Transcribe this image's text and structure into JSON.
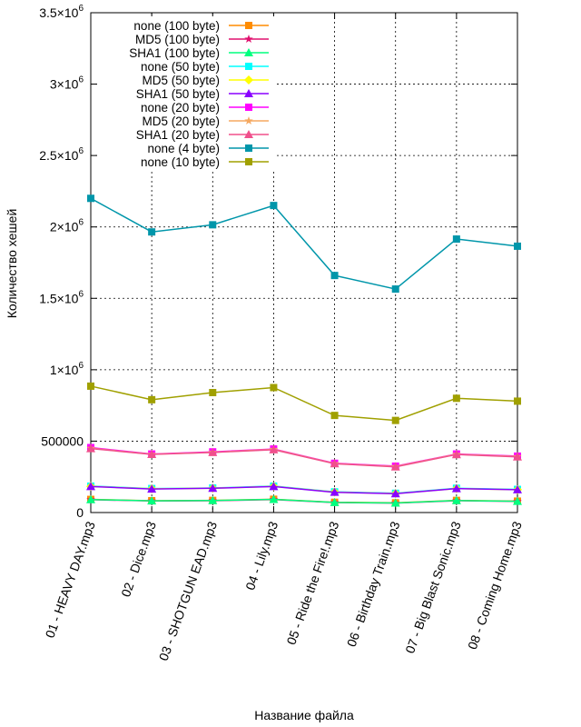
{
  "chart_data": {
    "type": "line",
    "title": "",
    "xlabel": "Название файла",
    "ylabel": "Количество хешей",
    "ylim": [
      0,
      3500000
    ],
    "yticks": [
      {
        "value": 0,
        "label": "0",
        "sup": ""
      },
      {
        "value": 500000,
        "label": "500000",
        "sup": ""
      },
      {
        "value": 1000000,
        "label": "1×10",
        "sup": "6"
      },
      {
        "value": 1500000,
        "label": "1.5×10",
        "sup": "6"
      },
      {
        "value": 2000000,
        "label": "2×10",
        "sup": "6"
      },
      {
        "value": 2500000,
        "label": "2.5×10",
        "sup": "6"
      },
      {
        "value": 3000000,
        "label": "3×10",
        "sup": "6"
      },
      {
        "value": 3500000,
        "label": "3.5×10",
        "sup": "6"
      }
    ],
    "grid": true,
    "grid_style": "dotted",
    "legend_position": "top-left",
    "categories": [
      "01 - HEAVY DAY.mp3",
      "02 - Dice.mp3",
      "03 - SHOTGUN EAD.mp3",
      "04 - Lily.mp3",
      "05 - Ride the Fire!.mp3",
      "06 - Birthday Train.mp3",
      "07 - Big Blast Sonic.mp3",
      "08 - Coming Home.mp3"
    ],
    "series": [
      {
        "name": "none (100 byte)",
        "color": "#ff8c00",
        "marker": "square",
        "values": [
          92000,
          83000,
          85000,
          93000,
          72000,
          68000,
          85000,
          80000
        ]
      },
      {
        "name": "MD5 (100 byte)",
        "color": "#e0106e",
        "marker": "star",
        "values": [
          90000,
          81000,
          83000,
          91000,
          70000,
          66000,
          83000,
          78000
        ]
      },
      {
        "name": "SHA1 (100 byte)",
        "color": "#00ff7f",
        "marker": "triangle",
        "values": [
          91000,
          82000,
          84000,
          92000,
          71000,
          67000,
          84000,
          79000
        ]
      },
      {
        "name": "none (50 byte)",
        "color": "#00ffff",
        "marker": "square",
        "values": [
          185000,
          168000,
          172000,
          185000,
          145000,
          135000,
          170000,
          162000
        ]
      },
      {
        "name": "MD5 (50 byte)",
        "color": "#ffff00",
        "marker": "diamond",
        "values": [
          183000,
          166000,
          170000,
          183000,
          143000,
          133000,
          168000,
          160000
        ]
      },
      {
        "name": "SHA1 (50 byte)",
        "color": "#8a00ff",
        "marker": "triangle",
        "values": [
          182000,
          165000,
          170000,
          182000,
          142000,
          132000,
          168000,
          160000
        ]
      },
      {
        "name": "none (20 byte)",
        "color": "#ff00ff",
        "marker": "square",
        "values": [
          455000,
          410000,
          425000,
          445000,
          345000,
          325000,
          410000,
          395000
        ]
      },
      {
        "name": "MD5 (20 byte)",
        "color": "#f5a860",
        "marker": "star",
        "values": [
          450000,
          408000,
          422000,
          442000,
          343000,
          322000,
          408000,
          392000
        ]
      },
      {
        "name": "SHA1 (20 byte)",
        "color": "#f0508c",
        "marker": "triangle",
        "values": [
          448000,
          407000,
          421000,
          440000,
          342000,
          320000,
          406000,
          390000
        ]
      },
      {
        "name": "none (4 byte)",
        "color": "#0096aa",
        "marker": "square",
        "values": [
          2200000,
          1965000,
          2015000,
          2150000,
          1660000,
          1565000,
          1915000,
          1865000
        ]
      },
      {
        "name": "none (10 byte)",
        "color": "#a0a000",
        "marker": "square",
        "values": [
          885000,
          790000,
          840000,
          875000,
          680000,
          645000,
          800000,
          780000
        ]
      }
    ]
  }
}
